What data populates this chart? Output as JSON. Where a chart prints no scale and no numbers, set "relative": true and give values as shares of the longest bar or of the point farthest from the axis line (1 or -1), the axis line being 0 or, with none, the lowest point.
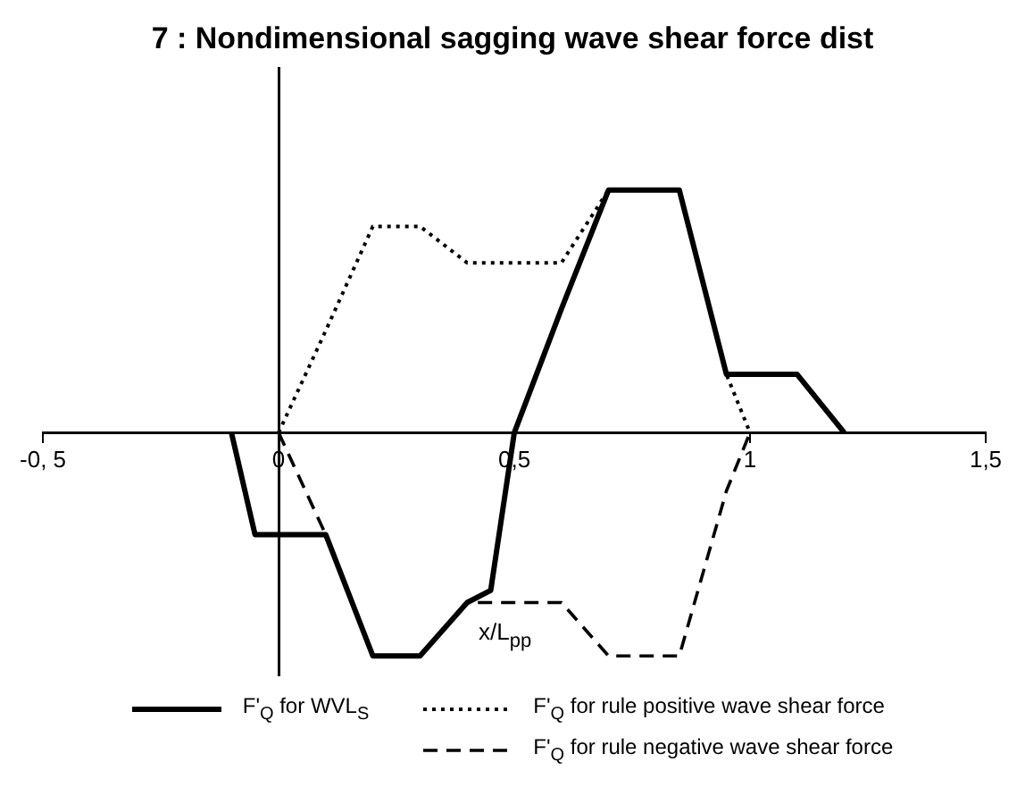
{
  "chart_data": {
    "type": "line",
    "title": "7 : Nondimensional sagging wave shear force dist",
    "xlabel": "x/L$_{pp}$",
    "relative": true,
    "marker": "none",
    "legend": "bottom",
    "xlim": [
      -0.5,
      1.5
    ],
    "xticks": [
      {
        "value": -0.5,
        "label": "-0, 5"
      },
      {
        "value": 0,
        "label": "0"
      },
      {
        "value": 0.5,
        "label": "0,5"
      },
      {
        "value": 1,
        "label": "1"
      },
      {
        "value": 1.5,
        "label": "1,5"
      }
    ],
    "series": [
      {
        "name": "F'$_{Q}$ for WVL$_{S}$",
        "color": "#000000",
        "line_style": "solid",
        "x": [
          -0.1,
          -0.05,
          0.1,
          0.2,
          0.3,
          0.4,
          0.45,
          0.5,
          0.6,
          0.7,
          0.85,
          0.95,
          1.1,
          1.2
        ],
        "values": [
          0,
          -0.42,
          -0.42,
          -0.92,
          -0.92,
          -0.7,
          -0.65,
          0,
          0.51,
          1,
          1,
          0.24,
          0.24,
          0
        ]
      },
      {
        "name": "F'$_{Q}$ for rule positive wave shear force",
        "color": "#000000",
        "line_style": "dotted",
        "x": [
          0,
          0.1,
          0.2,
          0.3,
          0.4,
          0.6,
          0.7,
          0.85,
          0.95,
          1.0
        ],
        "values": [
          0,
          0.42,
          0.85,
          0.85,
          0.7,
          0.7,
          1,
          1,
          0.24,
          0
        ]
      },
      {
        "name": "F'$_{Q}$ for rule negative wave shear force",
        "color": "#000000",
        "line_style": "dashed",
        "x": [
          0,
          0.1,
          0.2,
          0.3,
          0.4,
          0.6,
          0.7,
          0.85,
          0.95,
          1.0
        ],
        "values": [
          0,
          -0.42,
          -0.92,
          -0.92,
          -0.7,
          -0.7,
          -0.92,
          -0.92,
          -0.24,
          0
        ]
      }
    ]
  }
}
